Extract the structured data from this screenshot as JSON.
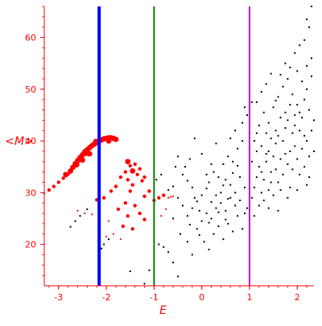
{
  "chart_data": {
    "type": "scatter",
    "title": "",
    "xlabel": "E",
    "ylabel": "<M>",
    "xlim": [
      -3.3,
      2.35
    ],
    "ylim": [
      12,
      66
    ],
    "grid": false,
    "legend": "none",
    "x_ticks": [
      -3,
      -2,
      -1,
      0,
      1,
      2
    ],
    "y_ticks": [
      20,
      30,
      40,
      50,
      60
    ],
    "x_tick_labels": [
      "-3",
      "-2",
      "-1",
      "0",
      "1",
      "2"
    ],
    "y_tick_labels": [
      "20",
      "30",
      "40",
      "50",
      "60"
    ],
    "colors": {
      "axis": "#ff0000",
      "red_points": "#ff0000",
      "black_points": "#000000"
    },
    "vertical_lines": [
      {
        "x": -2.15,
        "color": "#0000ff"
      },
      {
        "x": -1.0,
        "color": "#008000"
      },
      {
        "x": 1.0,
        "color": "#cc00cc"
      }
    ],
    "series": [
      {
        "color": "#ff0000",
        "marker_size": "large",
        "points": [
          [
            -2.75,
            34.2
          ],
          [
            -2.7,
            34.9
          ],
          [
            -2.65,
            35.6
          ],
          [
            -2.6,
            36.2
          ],
          [
            -2.55,
            36.8
          ],
          [
            -2.5,
            37.3
          ],
          [
            -2.45,
            37.9
          ],
          [
            -2.4,
            38.3
          ],
          [
            -2.35,
            38.7
          ],
          [
            -2.3,
            39.1
          ],
          [
            -2.25,
            39.4
          ],
          [
            -2.2,
            39.7
          ],
          [
            -2.15,
            40.0
          ],
          [
            -2.1,
            40.2
          ],
          [
            -2.05,
            40.4
          ],
          [
            -2.0,
            40.5
          ],
          [
            -1.95,
            40.6
          ],
          [
            -1.9,
            40.6
          ],
          [
            -1.85,
            40.5
          ],
          [
            -1.8,
            40.3
          ],
          [
            -2.85,
            33.5
          ],
          [
            -2.62,
            35.4
          ],
          [
            -2.42,
            37.6
          ],
          [
            -2.22,
            39.9
          ],
          [
            -2.5,
            36.3
          ],
          [
            -2.35,
            37.5
          ],
          [
            -1.55,
            36.0
          ],
          [
            -1.45,
            34.2
          ],
          [
            -1.95,
            40.0
          ]
        ]
      },
      {
        "color": "#ff0000",
        "marker_size": "medium",
        "points": [
          [
            -3.2,
            30.5
          ],
          [
            -3.1,
            31.2
          ],
          [
            -3.0,
            32.0
          ],
          [
            -2.9,
            32.8
          ],
          [
            -2.8,
            33.6
          ],
          [
            -1.5,
            35.2
          ],
          [
            -1.4,
            35.5
          ],
          [
            -1.3,
            34.6
          ],
          [
            -1.2,
            33.0
          ],
          [
            -1.6,
            34.0
          ],
          [
            -1.35,
            33.5
          ],
          [
            -1.7,
            33.0
          ],
          [
            -1.55,
            32.5
          ],
          [
            -1.25,
            32.3
          ],
          [
            -1.45,
            31.5
          ],
          [
            -1.8,
            31.2
          ],
          [
            -1.5,
            30.3
          ],
          [
            -1.2,
            29.3
          ],
          [
            -1.6,
            28.0
          ],
          [
            -1.4,
            27.5
          ],
          [
            -1.3,
            26.0
          ],
          [
            -1.55,
            25.5
          ],
          [
            -1.75,
            26.8
          ],
          [
            -1.65,
            23.5
          ],
          [
            -1.45,
            23.0
          ],
          [
            -1.2,
            24.8
          ],
          [
            -1.9,
            30.3
          ],
          [
            -2.05,
            29.0
          ],
          [
            -2.2,
            28.6
          ],
          [
            -1.0,
            28.5
          ],
          [
            -0.9,
            29.0
          ],
          [
            -0.8,
            29.5
          ],
          [
            -1.1,
            30.3
          ]
        ]
      },
      {
        "color": "#ff0000",
        "marker_size": "small",
        "points": [
          [
            -3.3,
            29.8
          ],
          [
            -2.6,
            26.5
          ],
          [
            -2.45,
            26.0
          ],
          [
            -2.3,
            25.8
          ],
          [
            -2.15,
            27.0
          ],
          [
            -1.95,
            24.5
          ],
          [
            -1.85,
            22.0
          ],
          [
            -2.0,
            21.5
          ],
          [
            -1.7,
            21.0
          ],
          [
            -0.85,
            25.5
          ],
          [
            -0.75,
            26.8
          ],
          [
            -0.7,
            29.0
          ],
          [
            -0.65,
            29.2
          ],
          [
            -0.6,
            29.3
          ]
        ]
      },
      {
        "color": "#000000",
        "marker_size": "small",
        "points": [
          [
            -2.75,
            23.4
          ],
          [
            -2.65,
            24.5
          ],
          [
            -2.55,
            25.5
          ],
          [
            -2.4,
            26.8
          ],
          [
            -2.1,
            19.2
          ],
          [
            -2.05,
            20.0
          ],
          [
            -1.95,
            21.0
          ],
          [
            -1.5,
            14.8
          ],
          [
            -1.1,
            15.0
          ],
          [
            -1.2,
            12.4
          ],
          [
            -0.9,
            20.0
          ],
          [
            -0.8,
            19.5
          ],
          [
            -0.7,
            18.5
          ],
          [
            -0.6,
            16.5
          ],
          [
            -0.5,
            13.8
          ],
          [
            -0.95,
            32.5
          ],
          [
            -0.85,
            33.5
          ],
          [
            -0.7,
            30.5
          ],
          [
            -0.6,
            31.2
          ],
          [
            -0.5,
            29.0
          ],
          [
            -0.4,
            27.5
          ],
          [
            -0.3,
            32.3
          ],
          [
            -0.2,
            31.0
          ],
          [
            -0.15,
            40.5
          ],
          [
            -0.5,
            37.0
          ],
          [
            -0.35,
            35.0
          ],
          [
            -0.25,
            36.5
          ],
          [
            -0.6,
            25.0
          ],
          [
            -0.45,
            22.0
          ],
          [
            -0.3,
            20.5
          ],
          [
            -0.2,
            18.0
          ],
          [
            -0.1,
            23.0
          ],
          [
            0.0,
            24.5
          ],
          [
            0.1,
            26.0
          ],
          [
            0.2,
            25.0
          ],
          [
            0.3,
            27.0
          ],
          [
            0.4,
            28.0
          ],
          [
            0.5,
            26.5
          ],
          [
            0.6,
            29.0
          ],
          [
            0.7,
            30.0
          ],
          [
            0.8,
            28.5
          ],
          [
            0.9,
            31.0
          ],
          [
            -0.2,
            27.0
          ],
          [
            -0.1,
            28.3
          ],
          [
            0.0,
            29.5
          ],
          [
            0.1,
            30.8
          ],
          [
            0.15,
            32.0
          ],
          [
            0.25,
            34.0
          ],
          [
            0.35,
            33.0
          ],
          [
            0.45,
            35.5
          ],
          [
            0.55,
            37.0
          ],
          [
            0.65,
            36.0
          ],
          [
            0.75,
            38.5
          ],
          [
            0.85,
            40.0
          ],
          [
            0.05,
            20.5
          ],
          [
            0.15,
            19.0
          ],
          [
            0.25,
            22.0
          ],
          [
            0.35,
            23.5
          ],
          [
            0.45,
            21.0
          ],
          [
            0.55,
            24.0
          ],
          [
            0.65,
            22.5
          ],
          [
            0.75,
            25.5
          ],
          [
            0.85,
            23.0
          ],
          [
            0.95,
            27.0
          ],
          [
            -0.3,
            25.5
          ],
          [
            -0.05,
            26.5
          ],
          [
            0.2,
            28.2
          ],
          [
            0.4,
            30.0
          ],
          [
            0.6,
            31.5
          ],
          [
            0.8,
            33.0
          ],
          [
            0.5,
            32.5
          ],
          [
            0.3,
            29.5
          ],
          [
            0.7,
            27.5
          ],
          [
            0.9,
            26.0
          ],
          [
            0.2,
            35.5
          ],
          [
            0.6,
            40.5
          ],
          [
            0.7,
            42.0
          ],
          [
            0.9,
            46.5
          ],
          [
            0.95,
            45.0
          ],
          [
            0.85,
            43.5
          ],
          [
            -0.4,
            33.5
          ],
          [
            -0.55,
            35.0
          ],
          [
            -0.15,
            29.0
          ],
          [
            0.1,
            33.5
          ],
          [
            0.0,
            37.5
          ],
          [
            0.3,
            39.5
          ],
          [
            0.5,
            24.8
          ],
          [
            0.55,
            28.8
          ],
          [
            0.65,
            33.8
          ],
          [
            -0.25,
            23.8
          ],
          [
            -0.05,
            21.8
          ],
          [
            0.15,
            24.2
          ],
          [
            0.35,
            26.2
          ],
          [
            0.45,
            31.4
          ],
          [
            0.75,
            35.2
          ],
          [
            1.05,
            29.0
          ],
          [
            1.1,
            31.0
          ],
          [
            1.15,
            33.0
          ],
          [
            1.2,
            35.0
          ],
          [
            1.25,
            30.0
          ],
          [
            1.3,
            32.5
          ],
          [
            1.35,
            36.0
          ],
          [
            1.4,
            38.0
          ],
          [
            1.45,
            34.0
          ],
          [
            1.5,
            37.0
          ],
          [
            1.55,
            39.5
          ],
          [
            1.6,
            41.0
          ],
          [
            1.65,
            36.5
          ],
          [
            1.7,
            40.0
          ],
          [
            1.75,
            42.5
          ],
          [
            1.8,
            44.0
          ],
          [
            1.85,
            38.0
          ],
          [
            1.9,
            41.5
          ],
          [
            1.95,
            45.0
          ],
          [
            2.0,
            47.0
          ],
          [
            2.05,
            42.0
          ],
          [
            2.1,
            44.5
          ],
          [
            2.15,
            48.0
          ],
          [
            2.2,
            50.0
          ],
          [
            2.25,
            46.0
          ],
          [
            2.3,
            52.5
          ],
          [
            1.1,
            40.0
          ],
          [
            1.2,
            43.0
          ],
          [
            1.3,
            45.5
          ],
          [
            1.4,
            43.5
          ],
          [
            1.5,
            46.5
          ],
          [
            1.6,
            48.5
          ],
          [
            1.7,
            50.5
          ],
          [
            1.8,
            52.0
          ],
          [
            1.9,
            49.0
          ],
          [
            2.0,
            53.5
          ],
          [
            2.1,
            51.5
          ],
          [
            2.2,
            54.5
          ],
          [
            2.3,
            56.0
          ],
          [
            1.15,
            47.5
          ],
          [
            1.25,
            49.5
          ],
          [
            1.35,
            51.0
          ],
          [
            1.45,
            53.0
          ],
          [
            1.55,
            47.8
          ],
          [
            1.65,
            52.8
          ],
          [
            1.75,
            55.0
          ],
          [
            1.85,
            54.2
          ],
          [
            1.95,
            57.0
          ],
          [
            2.05,
            58.5
          ],
          [
            2.15,
            59.5
          ],
          [
            2.25,
            62.0
          ],
          [
            2.2,
            63.5
          ],
          [
            2.3,
            66.0
          ],
          [
            1.1,
            25.5
          ],
          [
            1.2,
            27.5
          ],
          [
            1.3,
            28.5
          ],
          [
            1.4,
            30.5
          ],
          [
            1.5,
            29.5
          ],
          [
            1.6,
            32.0
          ],
          [
            1.7,
            33.5
          ],
          [
            1.8,
            35.5
          ],
          [
            1.9,
            34.5
          ],
          [
            2.0,
            36.5
          ],
          [
            2.1,
            38.5
          ],
          [
            2.2,
            40.0
          ],
          [
            2.3,
            42.0
          ],
          [
            1.05,
            36.0
          ],
          [
            1.15,
            38.0
          ],
          [
            1.25,
            39.0
          ],
          [
            1.35,
            41.5
          ],
          [
            1.45,
            40.5
          ],
          [
            1.55,
            42.0
          ],
          [
            1.65,
            44.5
          ],
          [
            1.75,
            45.5
          ],
          [
            1.85,
            47.0
          ],
          [
            1.95,
            43.0
          ],
          [
            2.05,
            45.5
          ],
          [
            2.15,
            41.0
          ],
          [
            2.25,
            37.0
          ],
          [
            2.35,
            44.0
          ],
          [
            1.0,
            46.0
          ],
          [
            1.05,
            47.5
          ],
          [
            1.15,
            41.5
          ],
          [
            1.25,
            34.0
          ],
          [
            1.35,
            37.5
          ],
          [
            1.45,
            32.0
          ],
          [
            1.55,
            34.5
          ],
          [
            1.65,
            30.5
          ],
          [
            1.75,
            37.5
          ],
          [
            1.85,
            31.0
          ],
          [
            1.95,
            39.0
          ],
          [
            2.05,
            33.5
          ],
          [
            2.15,
            35.0
          ],
          [
            2.25,
            33.0
          ],
          [
            2.35,
            38.0
          ],
          [
            1.4,
            27.0
          ],
          [
            1.6,
            26.5
          ],
          [
            1.8,
            29.0
          ],
          [
            2.0,
            30.5
          ],
          [
            2.2,
            31.5
          ]
        ]
      }
    ]
  }
}
